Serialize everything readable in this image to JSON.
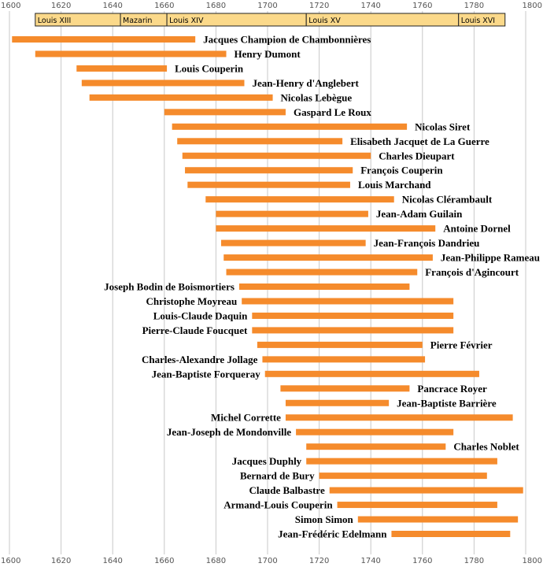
{
  "chart_data": {
    "type": "timeline",
    "x_axis": {
      "range": [
        1600,
        1800
      ],
      "ticks": [
        1600,
        1620,
        1640,
        1660,
        1680,
        1700,
        1720,
        1740,
        1760,
        1780,
        1800
      ]
    },
    "grid": "vertical",
    "reigns": [
      {
        "label": "Louis XIII",
        "start": 1610,
        "end": 1643
      },
      {
        "label": "Mazarin",
        "start": 1643,
        "end": 1661
      },
      {
        "label": "Louis XIV",
        "start": 1661,
        "end": 1715
      },
      {
        "label": "Louis XV",
        "start": 1715,
        "end": 1774
      },
      {
        "label": "Louis XVI",
        "start": 1774,
        "end": 1792
      }
    ],
    "composers": [
      {
        "name": "Jacques Champion de Chambonnières",
        "start": 1601,
        "end": 1672
      },
      {
        "name": "Henry Dumont",
        "start": 1610,
        "end": 1684
      },
      {
        "name": "Louis Couperin",
        "start": 1626,
        "end": 1661
      },
      {
        "name": "Jean-Henry d'Anglebert",
        "start": 1628,
        "end": 1691
      },
      {
        "name": "Nicolas Lebègue",
        "start": 1631,
        "end": 1702
      },
      {
        "name": "Gaspard Le Roux",
        "start": 1660,
        "end": 1707
      },
      {
        "name": "Nicolas Siret",
        "start": 1663,
        "end": 1754
      },
      {
        "name": "Elisabeth Jacquet de La Guerre",
        "start": 1665,
        "end": 1729
      },
      {
        "name": "Charles Dieupart",
        "start": 1667,
        "end": 1740
      },
      {
        "name": "François Couperin",
        "start": 1668,
        "end": 1733
      },
      {
        "name": "Louis Marchand",
        "start": 1669,
        "end": 1732
      },
      {
        "name": "Nicolas Clérambault",
        "start": 1676,
        "end": 1749
      },
      {
        "name": "Jean-Adam Guilain",
        "start": 1680,
        "end": 1739
      },
      {
        "name": "Antoine Dornel",
        "start": 1680,
        "end": 1765
      },
      {
        "name": "Jean-François Dandrieu",
        "start": 1682,
        "end": 1738
      },
      {
        "name": "Jean-Philippe Rameau",
        "start": 1683,
        "end": 1764
      },
      {
        "name": "François d'Agincourt",
        "start": 1684,
        "end": 1758
      },
      {
        "name": "Joseph Bodin de Boismortiers",
        "start": 1689,
        "end": 1755
      },
      {
        "name": "Christophe Moyreau",
        "start": 1690,
        "end": 1772
      },
      {
        "name": "Louis-Claude Daquin",
        "start": 1694,
        "end": 1772
      },
      {
        "name": "Pierre-Claude Foucquet",
        "start": 1694,
        "end": 1772
      },
      {
        "name": "Pierre Février",
        "start": 1696,
        "end": 1760
      },
      {
        "name": "Charles-Alexandre Jollage",
        "start": 1698,
        "end": 1761
      },
      {
        "name": "Jean-Baptiste Forqueray",
        "start": 1699,
        "end": 1782
      },
      {
        "name": "Pancrace Royer",
        "start": 1705,
        "end": 1755
      },
      {
        "name": "Jean-Baptiste Barrière",
        "start": 1707,
        "end": 1747
      },
      {
        "name": "Michel Corrette",
        "start": 1707,
        "end": 1795
      },
      {
        "name": "Jean-Joseph de Mondonville",
        "start": 1711,
        "end": 1772
      },
      {
        "name": "Charles Noblet",
        "start": 1715,
        "end": 1769
      },
      {
        "name": "Jacques Duphly",
        "start": 1715,
        "end": 1789
      },
      {
        "name": "Bernard de Bury",
        "start": 1720,
        "end": 1785
      },
      {
        "name": "Claude Balbastre",
        "start": 1724,
        "end": 1799
      },
      {
        "name": "Armand-Louis Couperin",
        "start": 1727,
        "end": 1789
      },
      {
        "name": "Simon Simon",
        "start": 1735,
        "end": 1797
      },
      {
        "name": "Jean-Frédéric Edelmann",
        "start": 1748,
        "end": 1794
      }
    ],
    "colors": {
      "bar": "#f58b2c",
      "reign_fill": "#fbd98a",
      "reign_stroke": "#222222",
      "grid": "#c8c8c8",
      "tick_text": "#555555"
    }
  }
}
